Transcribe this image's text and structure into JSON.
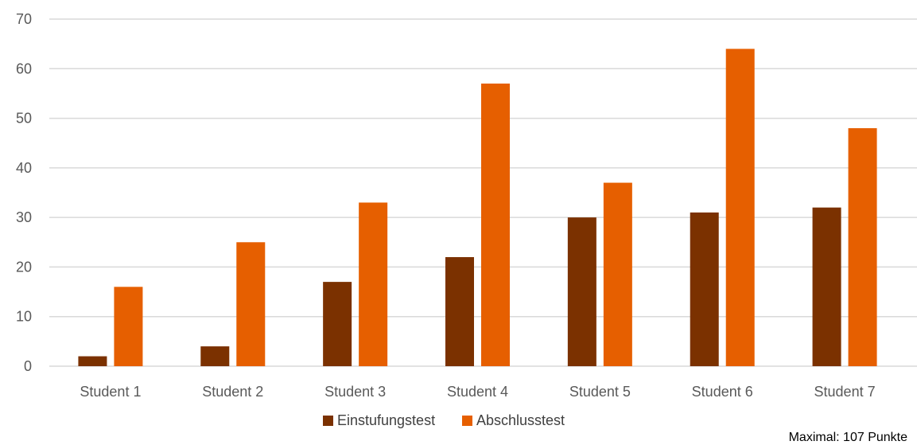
{
  "chart_data": {
    "type": "bar",
    "categories": [
      "Student 1",
      "Student 2",
      "Student 3",
      "Student 4",
      "Student 5",
      "Student 6",
      "Student 7"
    ],
    "series": [
      {
        "name": "Einstufungstest",
        "values": [
          2,
          4,
          17,
          22,
          30,
          31,
          32
        ],
        "color": "#7b3100"
      },
      {
        "name": "Abschlusstest",
        "values": [
          16,
          25,
          33,
          57,
          37,
          64,
          48
        ],
        "color": "#e65f00"
      }
    ],
    "title": "",
    "xlabel": "",
    "ylabel": "",
    "ylim": [
      0,
      70
    ],
    "yticks": [
      0,
      10,
      20,
      30,
      40,
      50,
      60,
      70
    ],
    "grid": true,
    "legend_position": "bottom",
    "annotation": "Maximal: 107 Punkte"
  }
}
